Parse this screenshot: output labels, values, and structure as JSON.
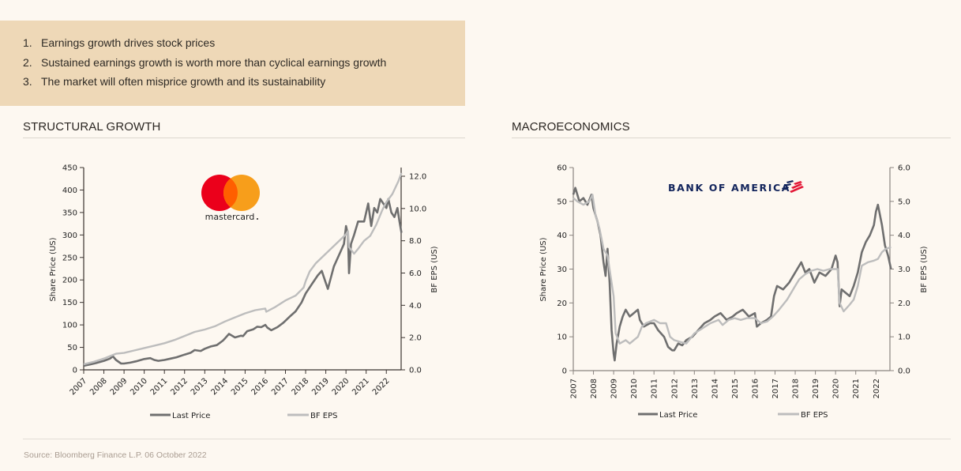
{
  "callout": {
    "items": [
      {
        "num": "1.",
        "text": "Earnings growth drives stock prices"
      },
      {
        "num": "2.",
        "text": "Sustained earnings growth is worth more than cyclical earnings growth"
      },
      {
        "num": "3.",
        "text": "The market will often misprice growth and its sustainability"
      }
    ]
  },
  "sections": {
    "left_title": "STRUCTURAL GROWTH",
    "right_title": "MACROECONOMICS"
  },
  "logos": {
    "mastercard": {
      "wordmark": "mastercard",
      "red": "#eb001b",
      "orange": "#f79e1b",
      "overlap": "#ff5f00"
    },
    "bofa": {
      "wordmark": "BANK OF AMERICA",
      "navy": "#13255c",
      "red": "#e31837"
    }
  },
  "footer": {
    "source": "Source: Bloomberg Finance L.P. 06 October 2022"
  },
  "colors": {
    "last_price": "#6f6f6f",
    "bf_eps": "#bdbdbd",
    "callout_bg": "#eed8b7",
    "page_bg": "#fdf8f1"
  },
  "chart_data": [
    {
      "type": "line",
      "title": "STRUCTURAL GROWTH",
      "company": "Mastercard",
      "xlabel": "",
      "ylabel": "Share Price (US)",
      "y2label": "BF EPS (US)",
      "x_ticks": [
        "2007",
        "2008",
        "2009",
        "2010",
        "2011",
        "2012",
        "2013",
        "2014",
        "2015",
        "2016",
        "2017",
        "2018",
        "2019",
        "2020",
        "2021",
        "2022"
      ],
      "x_range": [
        2007,
        2022.75
      ],
      "ylim": [
        0,
        450
      ],
      "y_ticks": [
        "0",
        "50",
        "100",
        "150",
        "200",
        "250",
        "300",
        "350",
        "400",
        "450"
      ],
      "y2lim": [
        0,
        12.5
      ],
      "y2_ticks": [
        "0.0",
        "2.0",
        "4.0",
        "6.0",
        "8.0",
        "10.0",
        "12.0"
      ],
      "grid": false,
      "legend": "bottom",
      "series": [
        {
          "name": "Last Price",
          "axis": "left",
          "x": [
            2007.0,
            2007.3,
            2007.6,
            2008.0,
            2008.3,
            2008.45,
            2008.6,
            2008.85,
            2009.0,
            2009.3,
            2009.6,
            2010.0,
            2010.3,
            2010.5,
            2010.7,
            2011.0,
            2011.3,
            2011.6,
            2012.0,
            2012.3,
            2012.5,
            2012.8,
            2013.0,
            2013.3,
            2013.6,
            2013.9,
            2014.0,
            2014.2,
            2014.5,
            2014.8,
            2014.9,
            2015.1,
            2015.4,
            2015.6,
            2015.8,
            2016.0,
            2016.1,
            2016.3,
            2016.6,
            2016.9,
            2017.2,
            2017.5,
            2017.8,
            2018.0,
            2018.3,
            2018.6,
            2018.8,
            2018.95,
            2019.1,
            2019.4,
            2019.7,
            2019.9,
            2020.0,
            2020.1,
            2020.15,
            2020.25,
            2020.4,
            2020.6,
            2020.9,
            2021.1,
            2021.25,
            2021.4,
            2021.55,
            2021.7,
            2021.85,
            2022.0,
            2022.1,
            2022.25,
            2022.4,
            2022.55,
            2022.65,
            2022.75
          ],
          "values": [
            9,
            12,
            15,
            20,
            25,
            30,
            22,
            14,
            14,
            16,
            19,
            24,
            26,
            22,
            20,
            22,
            25,
            28,
            34,
            38,
            44,
            42,
            47,
            52,
            55,
            65,
            70,
            80,
            72,
            76,
            75,
            86,
            90,
            96,
            95,
            100,
            94,
            88,
            95,
            105,
            118,
            130,
            150,
            170,
            190,
            210,
            220,
            200,
            180,
            230,
            260,
            280,
            320,
            300,
            215,
            280,
            300,
            330,
            330,
            370,
            320,
            360,
            350,
            380,
            370,
            360,
            380,
            350,
            340,
            360,
            330,
            305
          ]
        },
        {
          "name": "BF EPS",
          "axis": "right",
          "x": [
            2007.0,
            2007.5,
            2008.0,
            2008.4,
            2008.6,
            2009.0,
            2009.5,
            2010.0,
            2010.5,
            2011.0,
            2011.5,
            2012.0,
            2012.5,
            2013.0,
            2013.5,
            2014.0,
            2014.5,
            2015.0,
            2015.5,
            2016.0,
            2016.05,
            2016.5,
            2017.0,
            2017.5,
            2017.9,
            2018.0,
            2018.2,
            2018.5,
            2019.0,
            2019.5,
            2020.0,
            2020.1,
            2020.15,
            2020.4,
            2020.6,
            2020.9,
            2021.2,
            2021.5,
            2021.8,
            2022.0,
            2022.3,
            2022.6,
            2022.75
          ],
          "values": [
            0.35,
            0.5,
            0.7,
            0.9,
            1.0,
            1.05,
            1.2,
            1.35,
            1.5,
            1.65,
            1.85,
            2.1,
            2.35,
            2.5,
            2.7,
            3.0,
            3.25,
            3.5,
            3.7,
            3.8,
            3.6,
            3.9,
            4.3,
            4.6,
            5.1,
            5.5,
            6.1,
            6.6,
            7.2,
            7.8,
            8.4,
            8.6,
            7.6,
            7.2,
            7.5,
            8.0,
            8.3,
            9.0,
            9.9,
            10.4,
            10.9,
            11.7,
            12.2
          ]
        }
      ]
    },
    {
      "type": "line",
      "title": "MACROECONOMICS",
      "company": "Bank of America",
      "xlabel": "",
      "ylabel": "Share Price (US)",
      "y2label": "BF EPS (US)",
      "x_ticks": [
        "2007",
        "2008",
        "2009",
        "2010",
        "2011",
        "2012",
        "2013",
        "2014",
        "2015",
        "2016",
        "2017",
        "2018",
        "2019",
        "2020",
        "2021",
        "2022"
      ],
      "x_range": [
        2007,
        2022.75
      ],
      "ylim": [
        0,
        60
      ],
      "y_ticks": [
        "0",
        "10",
        "20",
        "30",
        "40",
        "50",
        "60"
      ],
      "y2lim": [
        0,
        6.0
      ],
      "y2_ticks": [
        "0.0",
        "1.0",
        "2.0",
        "3.0",
        "4.0",
        "5.0",
        "6.0"
      ],
      "grid": false,
      "legend": "bottom",
      "series": [
        {
          "name": "Last Price",
          "axis": "left",
          "x": [
            2007.0,
            2007.1,
            2007.3,
            2007.5,
            2007.7,
            2007.9,
            2008.0,
            2008.2,
            2008.35,
            2008.5,
            2008.6,
            2008.7,
            2008.8,
            2008.9,
            2009.0,
            2009.05,
            2009.15,
            2009.3,
            2009.45,
            2009.6,
            2009.8,
            2010.0,
            2010.2,
            2010.3,
            2010.5,
            2010.8,
            2011.0,
            2011.2,
            2011.5,
            2011.7,
            2011.9,
            2012.0,
            2012.2,
            2012.4,
            2012.6,
            2012.9,
            2013.2,
            2013.5,
            2013.8,
            2014.0,
            2014.3,
            2014.6,
            2014.9,
            2015.1,
            2015.4,
            2015.7,
            2016.0,
            2016.1,
            2016.3,
            2016.6,
            2016.8,
            2016.95,
            2017.1,
            2017.4,
            2017.7,
            2017.9,
            2018.1,
            2018.3,
            2018.5,
            2018.7,
            2018.95,
            2019.2,
            2019.5,
            2019.8,
            2020.0,
            2020.1,
            2020.2,
            2020.3,
            2020.5,
            2020.7,
            2020.9,
            2021.1,
            2021.3,
            2021.5,
            2021.7,
            2021.9,
            2022.0,
            2022.1,
            2022.3,
            2022.45,
            2022.6,
            2022.75
          ],
          "values": [
            52,
            54,
            50,
            51,
            49,
            52,
            48,
            44,
            40,
            32,
            28,
            36,
            26,
            12,
            5,
            3,
            8,
            13,
            16,
            18,
            16,
            17,
            18,
            15,
            13,
            14,
            14,
            12,
            10,
            7,
            6,
            6,
            8,
            7.5,
            9,
            10,
            12,
            14,
            15,
            16,
            17,
            15,
            16,
            17,
            18,
            16,
            17,
            13,
            14,
            15,
            16,
            22,
            25,
            24,
            26,
            28,
            30,
            32,
            29,
            30,
            26,
            29,
            28,
            30,
            34,
            32,
            19,
            24,
            23,
            22,
            25,
            29,
            35,
            38,
            40,
            43,
            47,
            49,
            43,
            37,
            34,
            30
          ]
        },
        {
          "name": "BF EPS",
          "axis": "right",
          "x": [
            2007.0,
            2007.2,
            2007.5,
            2007.8,
            2007.95,
            2008.1,
            2008.3,
            2008.5,
            2008.7,
            2008.9,
            2009.0,
            2009.1,
            2009.3,
            2009.6,
            2009.8,
            2010.0,
            2010.2,
            2010.4,
            2010.6,
            2011.0,
            2011.3,
            2011.6,
            2011.8,
            2012.0,
            2012.3,
            2012.6,
            2013.0,
            2013.4,
            2013.8,
            2014.2,
            2014.4,
            2014.7,
            2015.0,
            2015.3,
            2015.6,
            2016.0,
            2016.3,
            2016.6,
            2016.9,
            2017.2,
            2017.6,
            2018.0,
            2018.2,
            2018.5,
            2018.8,
            2019.1,
            2019.4,
            2019.7,
            2020.0,
            2020.1,
            2020.2,
            2020.4,
            2020.7,
            2020.9,
            2021.1,
            2021.3,
            2021.6,
            2021.9,
            2022.1,
            2022.3,
            2022.5,
            2022.75
          ],
          "values": [
            5.1,
            5.0,
            4.9,
            5.0,
            5.2,
            4.6,
            4.2,
            3.6,
            3.4,
            2.6,
            2.2,
            1.1,
            0.8,
            0.9,
            0.8,
            0.9,
            1.0,
            1.3,
            1.4,
            1.5,
            1.4,
            1.4,
            1.0,
            0.9,
            0.85,
            0.8,
            1.1,
            1.25,
            1.4,
            1.5,
            1.35,
            1.5,
            1.55,
            1.5,
            1.55,
            1.55,
            1.4,
            1.45,
            1.6,
            1.8,
            2.1,
            2.5,
            2.7,
            2.85,
            2.95,
            3.0,
            2.95,
            3.0,
            3.0,
            3.0,
            2.0,
            1.75,
            1.95,
            2.1,
            2.5,
            3.1,
            3.2,
            3.25,
            3.3,
            3.5,
            3.6,
            3.65
          ]
        }
      ]
    }
  ]
}
